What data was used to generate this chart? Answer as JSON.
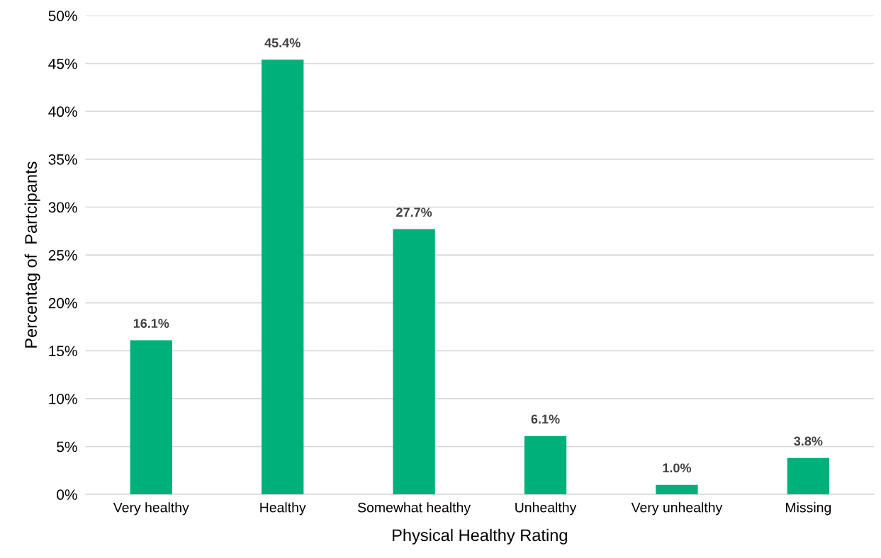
{
  "chart_data": {
    "type": "bar",
    "xlabel": "Physical Healthy Rating",
    "ylabel": "Percentag of  Partcipants",
    "categories": [
      "Very healthy",
      "Healthy",
      "Somewhat healthy",
      "Unhealthy",
      "Very unhealthy",
      "Missing"
    ],
    "values": [
      16.1,
      45.4,
      27.7,
      6.1,
      1.0,
      3.8
    ],
    "value_labels": [
      "16.1%",
      "45.4%",
      "27.7%",
      "6.1%",
      "1.0%",
      "3.8%"
    ],
    "color": "#00b07a",
    "ylim": [
      0,
      50
    ],
    "yticks": [
      {
        "value": 0,
        "label": "0%"
      },
      {
        "value": 5,
        "label": "5%"
      },
      {
        "value": 10,
        "label": "10%"
      },
      {
        "value": 15,
        "label": "15%"
      },
      {
        "value": 20,
        "label": "20%"
      },
      {
        "value": 25,
        "label": "25%"
      },
      {
        "value": 30,
        "label": "30%"
      },
      {
        "value": 35,
        "label": "35%"
      },
      {
        "value": 40,
        "label": "40%"
      },
      {
        "value": 45,
        "label": "45%"
      },
      {
        "value": 50,
        "label": "50%"
      }
    ],
    "grid": "y"
  }
}
